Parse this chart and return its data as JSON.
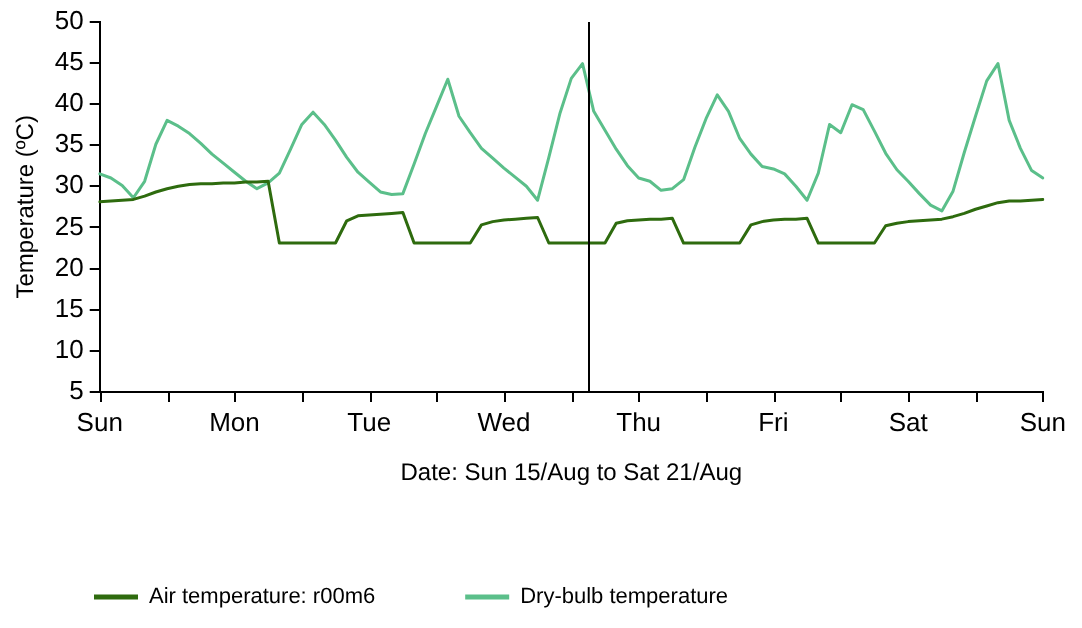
{
  "chart_data": {
    "type": "line",
    "xlabel": "Date: Sun 15/Aug to Sat 21/Aug",
    "ylabel": "Temperature (ºC)",
    "categories": [
      "Sun",
      null,
      null,
      null,
      null,
      null,
      null,
      null,
      null,
      null,
      null,
      null,
      "Mon",
      null,
      null,
      null,
      null,
      null,
      null,
      null,
      null,
      null,
      null,
      null,
      "Tue",
      null,
      null,
      null,
      null,
      null,
      null,
      null,
      null,
      null,
      null,
      null,
      "Wed",
      null,
      null,
      null,
      null,
      null,
      null,
      null,
      null,
      null,
      null,
      null,
      "Thu",
      null,
      null,
      null,
      null,
      null,
      null,
      null,
      null,
      null,
      null,
      null,
      "Fri",
      null,
      null,
      null,
      null,
      null,
      null,
      null,
      null,
      null,
      null,
      null,
      "Sat",
      null,
      null,
      null,
      null,
      null,
      null,
      null,
      null,
      null,
      null,
      null,
      "Sun"
    ],
    "ylim": [
      5,
      50
    ],
    "yticks": [
      5,
      10,
      15,
      20,
      25,
      30,
      35,
      40,
      45,
      50
    ],
    "grid": false,
    "legend": "bottom",
    "marker": "none",
    "line_style": "solid",
    "series": [
      {
        "name": "Air temperature: r00m6",
        "color": "#2e6b0e",
        "values": [
          28.1,
          28.2,
          28.3,
          28.4,
          28.8,
          29.3,
          29.7,
          30.0,
          30.2,
          30.3,
          30.3,
          30.4,
          30.4,
          30.5,
          30.5,
          30.6,
          23.1,
          23.1,
          23.1,
          23.1,
          23.1,
          23.1,
          25.8,
          26.4,
          26.5,
          26.6,
          26.7,
          26.8,
          23.1,
          23.1,
          23.1,
          23.1,
          23.1,
          23.1,
          25.3,
          25.7,
          25.9,
          26.0,
          26.1,
          26.2,
          23.1,
          23.1,
          23.1,
          23.1,
          23.1,
          23.1,
          25.5,
          25.8,
          25.9,
          26.0,
          26.0,
          26.1,
          23.1,
          23.1,
          23.1,
          23.1,
          23.1,
          23.1,
          25.3,
          25.7,
          25.9,
          26.0,
          26.0,
          26.1,
          23.1,
          23.1,
          23.1,
          23.1,
          23.1,
          23.1,
          25.2,
          25.5,
          25.7,
          25.8,
          25.9,
          26.0,
          26.3,
          26.7,
          27.2,
          27.6,
          28.0,
          28.2,
          28.2,
          28.3,
          28.4
        ]
      },
      {
        "name": "Dry-bulb temperature",
        "color": "#5bbf8a",
        "values": [
          31.5,
          31.0,
          30.1,
          28.6,
          30.6,
          35.1,
          38,
          37.3,
          36.4,
          35.2,
          33.9,
          32.8,
          31.7,
          30.6,
          29.7,
          30.4,
          31.6,
          34.5,
          37.5,
          39,
          37.5,
          35.6,
          33.5,
          31.7,
          30.5,
          29.3,
          29.0,
          29.1,
          32.7,
          36.4,
          39.7,
          43,
          38.5,
          36.5,
          34.6,
          33.4,
          32.2,
          31.1,
          30.0,
          28.3,
          33.5,
          38.9,
          43.1,
          44.9,
          39.1,
          36.8,
          34.5,
          32.5,
          31.0,
          30.6,
          29.5,
          29.7,
          30.8,
          34.7,
          38.2,
          41.1,
          39.1,
          35.8,
          33.9,
          32.4,
          32.1,
          31.5,
          30.0,
          28.3,
          31.6,
          37.5,
          36.5,
          39.9,
          39.3,
          36.7,
          34.0,
          32.0,
          30.6,
          29.1,
          27.7,
          27,
          29.4,
          34.1,
          38.5,
          42.8,
          44.9,
          38.0,
          34.6,
          31.9,
          31
        ]
      }
    ]
  }
}
